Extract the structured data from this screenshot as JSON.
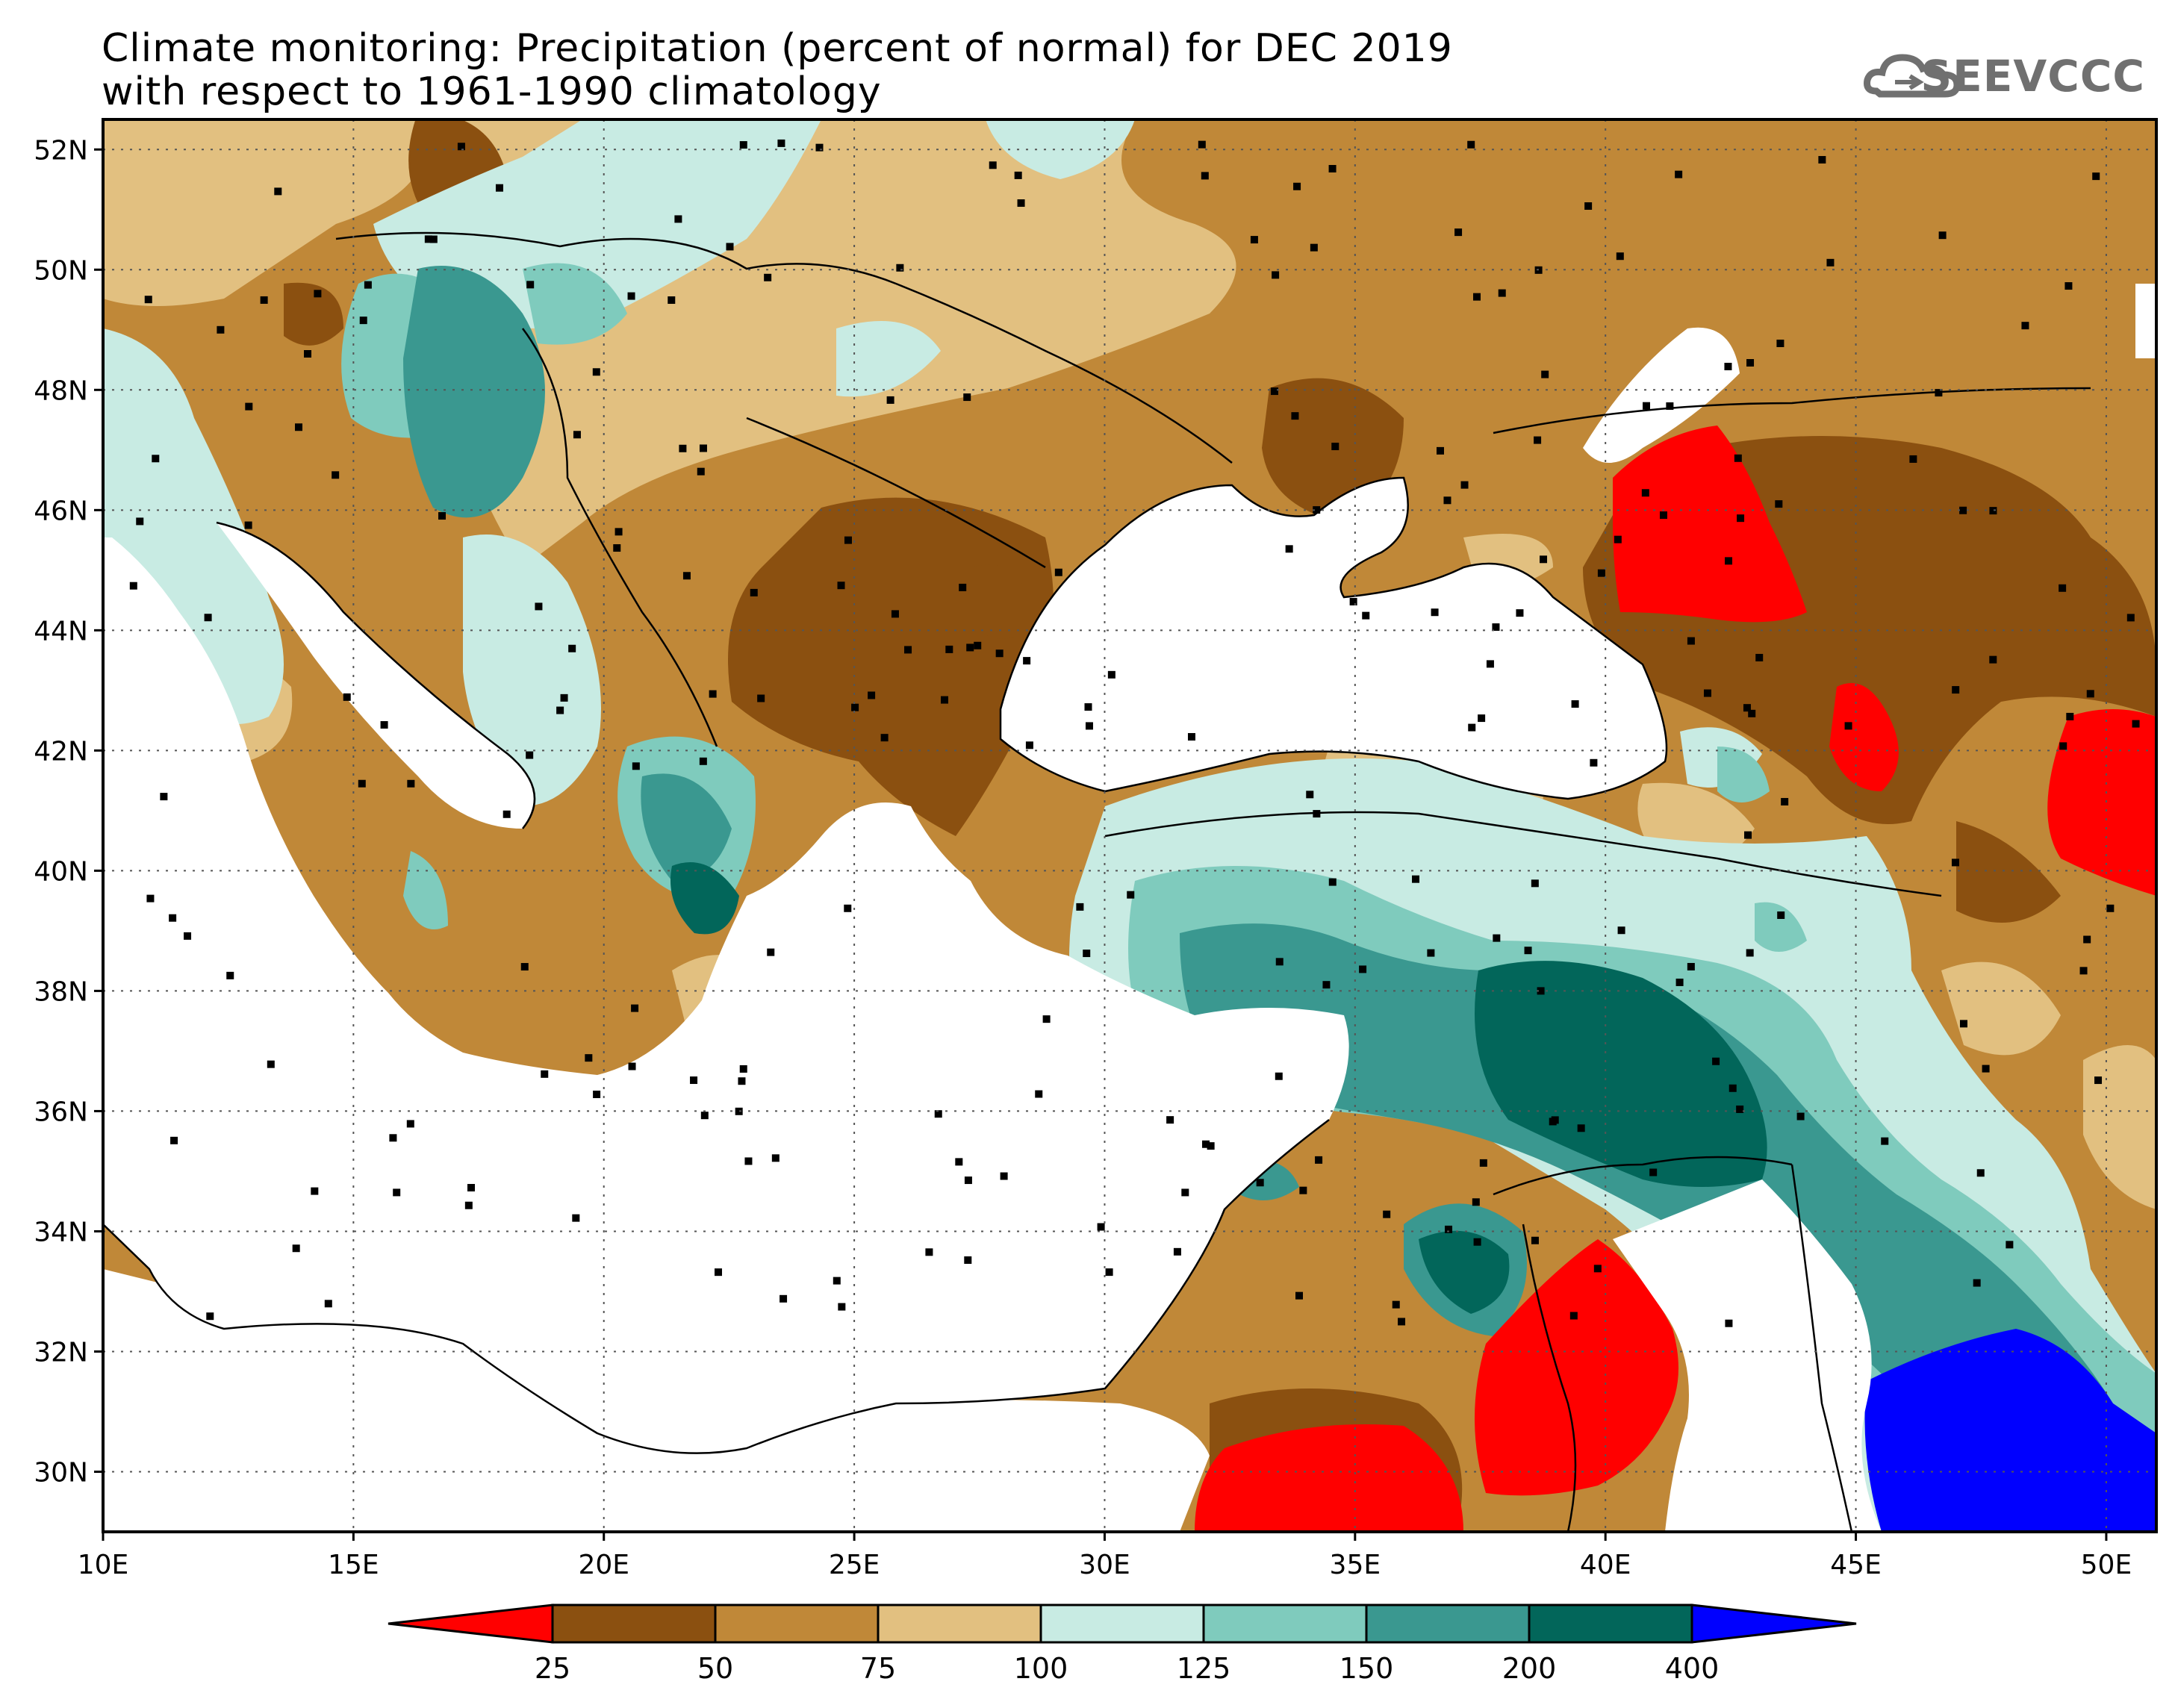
{
  "title": {
    "line1": "Climate monitoring: Precipitation (percent of normal) for DEC 2019",
    "line2": "with respect to 1961-1990 climatology"
  },
  "logo": {
    "text": "SEEVCCC",
    "icon": "cloud-icon"
  },
  "map": {
    "lon_range": [
      10,
      51
    ],
    "lat_range": [
      29,
      52.5
    ],
    "lon_ticks": [
      "10E",
      "15E",
      "20E",
      "25E",
      "30E",
      "35E",
      "40E",
      "45E",
      "50E"
    ],
    "lat_ticks": [
      "30N",
      "32N",
      "34N",
      "36N",
      "38N",
      "40N",
      "42N",
      "44N",
      "46N",
      "48N",
      "50N",
      "52N"
    ]
  },
  "legend": {
    "labels": [
      "25",
      "50",
      "75",
      "100",
      "125",
      "150",
      "200",
      "400"
    ],
    "colors": [
      "#ff0000",
      "#8b5010",
      "#c08838",
      "#e2c080",
      "#c8ebe3",
      "#7fcbbd",
      "#3a9890",
      "#02665a",
      "#0000ff"
    ]
  }
}
